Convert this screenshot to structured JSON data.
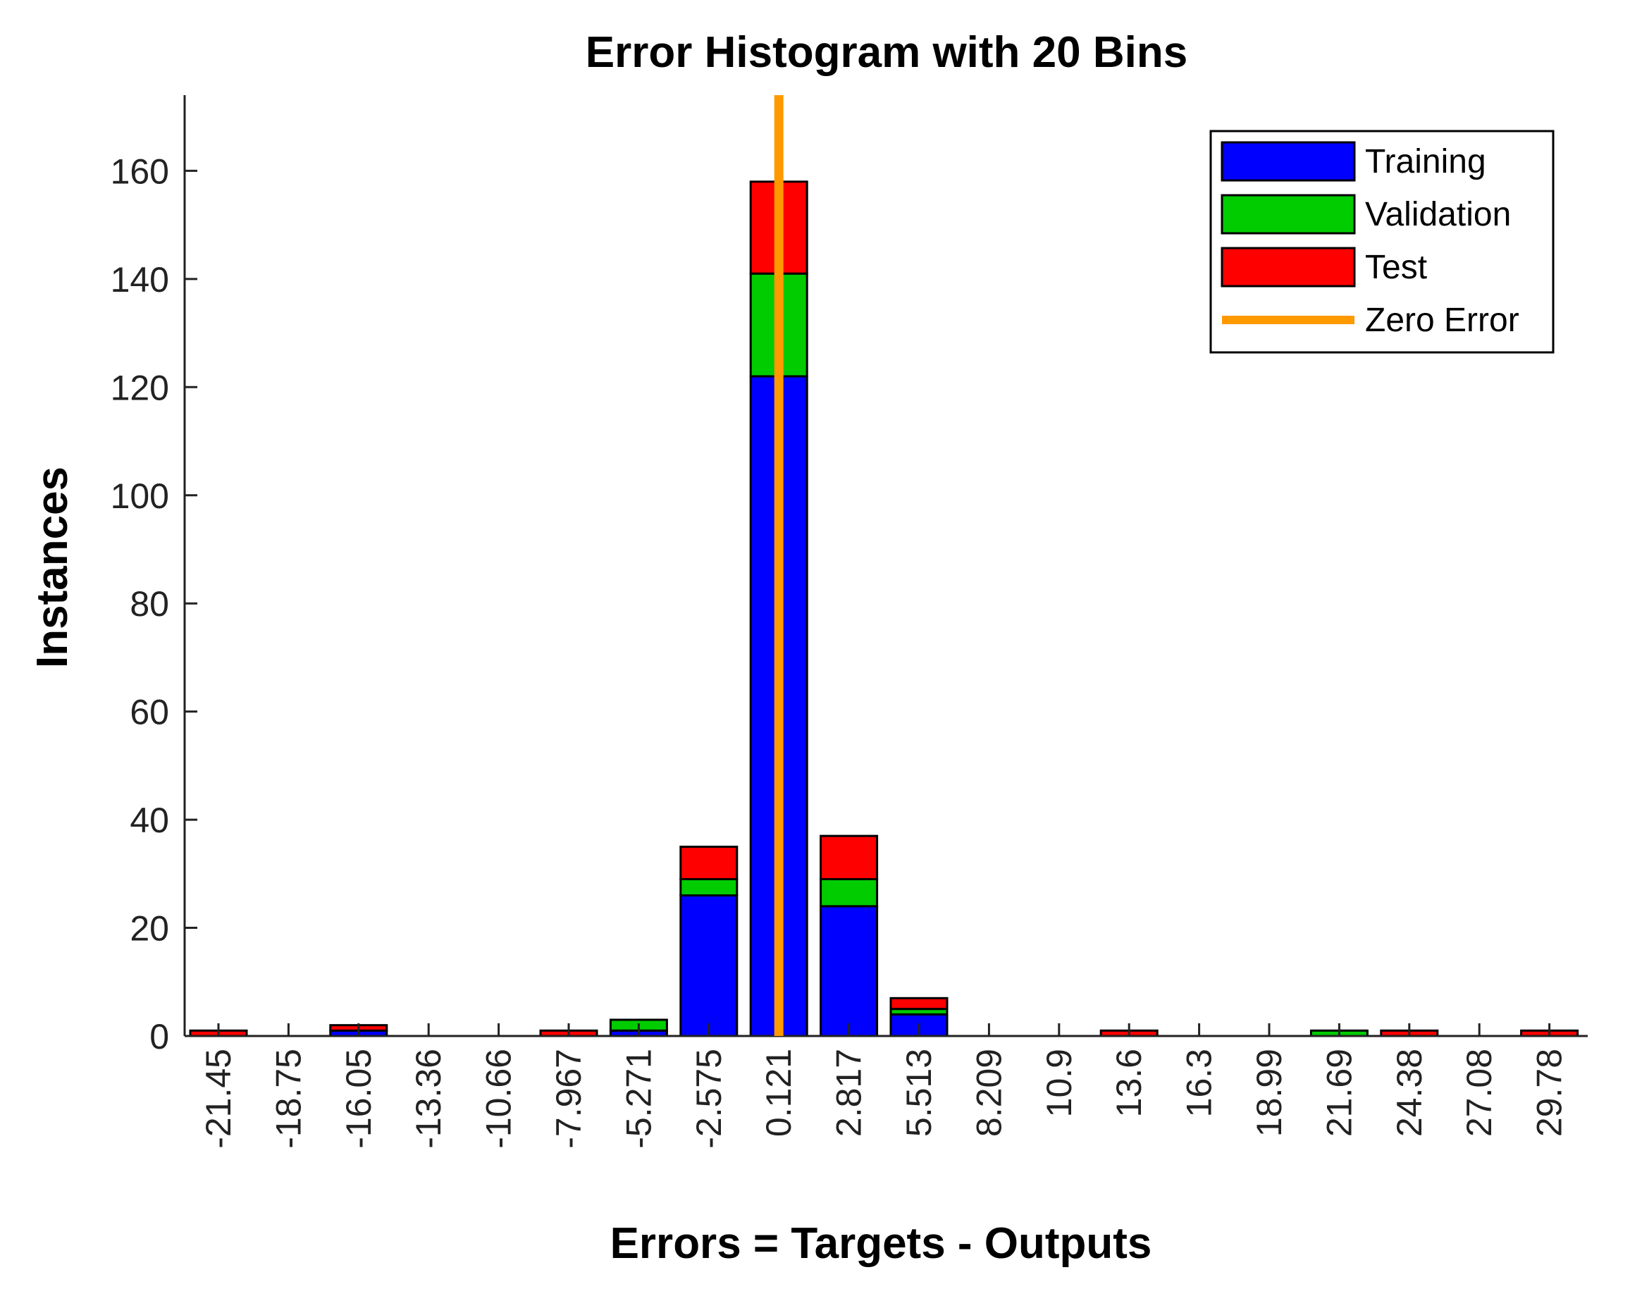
{
  "chart_data": {
    "type": "bar",
    "stacked": true,
    "title": "Error Histogram with 20 Bins",
    "xlabel": "Errors = Targets - Outputs",
    "ylabel": "Instances",
    "ylim": [
      0,
      174
    ],
    "yticks": [
      0,
      20,
      40,
      60,
      80,
      100,
      120,
      140,
      160
    ],
    "grid": false,
    "legend_position": "top-right",
    "categories": [
      "-21.45",
      "-18.75",
      "-16.05",
      "-13.36",
      "-10.66",
      "-7.967",
      "-5.271",
      "-2.575",
      "0.121",
      "2.817",
      "5.513",
      "8.209",
      "10.9",
      "13.6",
      "16.3",
      "18.99",
      "21.69",
      "24.38",
      "27.08",
      "29.78"
    ],
    "series": [
      {
        "name": "Training",
        "color": "#0000ff",
        "values": [
          0,
          0,
          1,
          0,
          0,
          0,
          1,
          26,
          122,
          24,
          4,
          0,
          0,
          0,
          0,
          0,
          0,
          0,
          0,
          0
        ]
      },
      {
        "name": "Validation",
        "color": "#00cc00",
        "values": [
          0,
          0,
          0,
          0,
          0,
          0,
          2,
          3,
          19,
          5,
          1,
          0,
          0,
          0,
          0,
          0,
          1,
          0,
          0,
          0
        ]
      },
      {
        "name": "Test",
        "color": "#ff0000",
        "values": [
          1,
          0,
          1,
          0,
          0,
          1,
          0,
          6,
          17,
          8,
          2,
          0,
          0,
          1,
          0,
          0,
          0,
          1,
          0,
          1
        ]
      }
    ],
    "zero_error": {
      "name": "Zero Error",
      "color": "#ff9900",
      "category": "0.121"
    }
  }
}
